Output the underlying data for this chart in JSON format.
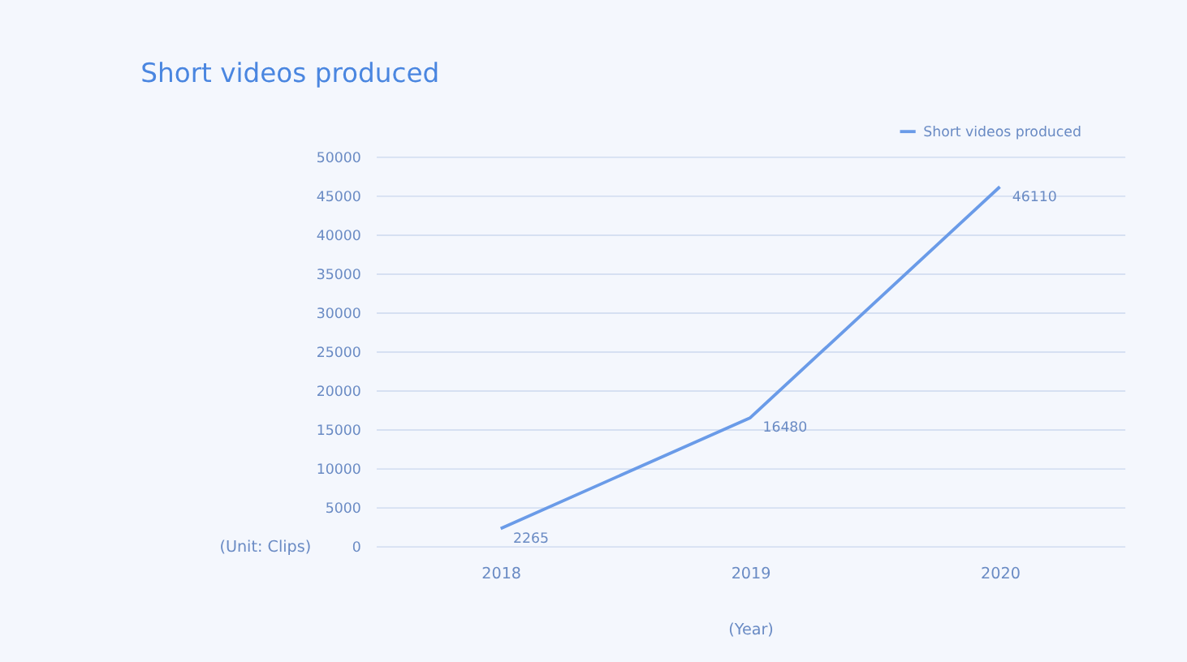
{
  "chart_data": {
    "type": "line",
    "title": "Short videos produced",
    "xlabel": "(Year)",
    "ylabel": "(Unit: Clips)",
    "categories": [
      "2018",
      "2019",
      "2020"
    ],
    "series": [
      {
        "name": "Short videos produced",
        "color": "#6a9be8",
        "values": [
          2265,
          16480,
          46110
        ]
      }
    ],
    "ylim": [
      0,
      50000
    ],
    "yticks": [
      0,
      5000,
      10000,
      15000,
      20000,
      25000,
      30000,
      35000,
      40000,
      45000,
      50000
    ],
    "grid": "y",
    "legend": "top right",
    "data_labels": true,
    "marker": "none",
    "line_style": "solid"
  }
}
